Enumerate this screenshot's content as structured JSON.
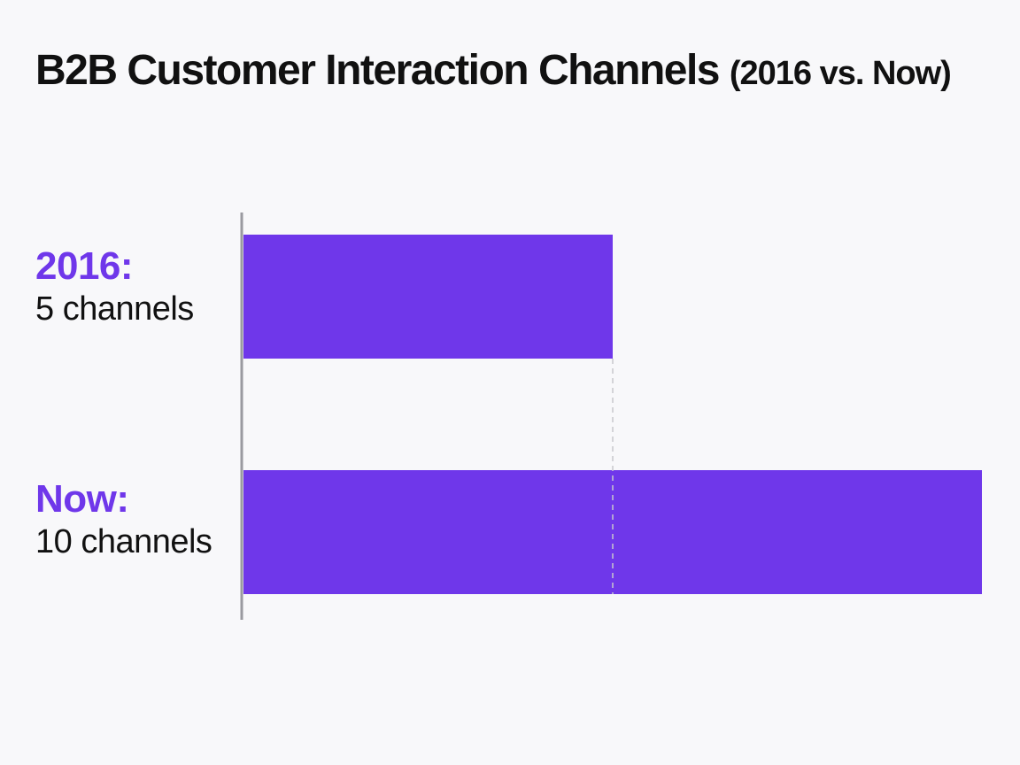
{
  "title": {
    "main": "B2B Customer Interaction Channels",
    "sub": "(2016 vs. Now)"
  },
  "colors": {
    "bar": "#6f37ea",
    "label_accent": "#6f37ea",
    "axis": "#9a9aa0",
    "reference_line": "#c8c8cc",
    "background": "#f8f8fa"
  },
  "labels": [
    {
      "name": "2016:",
      "value_text": "5 channels"
    },
    {
      "name": "Now:",
      "value_text": "10 channels"
    }
  ],
  "chart_data": {
    "type": "bar",
    "orientation": "horizontal",
    "title": "B2B Customer Interaction Channels (2016 vs. Now)",
    "categories": [
      "2016",
      "Now"
    ],
    "values": [
      5,
      10
    ],
    "unit": "channels",
    "xlim": [
      0,
      10
    ],
    "grid": false,
    "legend": "none",
    "reference_line": {
      "style": "dashed",
      "at_value": 5
    }
  }
}
